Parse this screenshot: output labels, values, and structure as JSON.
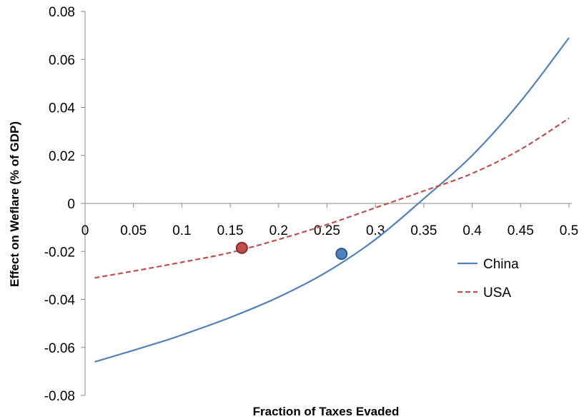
{
  "chart_data": {
    "type": "line",
    "title": "",
    "xlabel": "Fraction of Taxes Evaded",
    "ylabel": "Effect on Weflare (% of GDP)",
    "xlim": [
      0,
      0.5
    ],
    "ylim": [
      -0.08,
      0.08
    ],
    "x_ticks": [
      "0",
      "0.05",
      "0.1",
      "0.15",
      "0.2",
      "0.25",
      "0.3",
      "0.35",
      "0.4",
      "0.45",
      "0.5"
    ],
    "y_ticks": [
      "0.08",
      "0.06",
      "0.04",
      "0.02",
      "0",
      "-0.02",
      "-0.04",
      "-0.06",
      "-0.08"
    ],
    "grid": false,
    "legend_position": "right",
    "series": [
      {
        "name": "China",
        "color": "#4f81bd",
        "style": "solid",
        "x": [
          0.01,
          0.05,
          0.08,
          0.1,
          0.15,
          0.2,
          0.25,
          0.3,
          0.35,
          0.4,
          0.45,
          0.5
        ],
        "y": [
          -0.066,
          -0.0612,
          -0.0575,
          -0.0548,
          -0.0475,
          -0.039,
          -0.0285,
          -0.015,
          0.002,
          0.02,
          0.0425,
          0.069
        ],
        "marker": {
          "x": 0.265,
          "y": -0.021
        }
      },
      {
        "name": "USA",
        "color": "#c0504d",
        "style": "dashed",
        "x": [
          0.01,
          0.05,
          0.1,
          0.15,
          0.2,
          0.25,
          0.3,
          0.35,
          0.4,
          0.45,
          0.5
        ],
        "y": [
          -0.031,
          -0.0282,
          -0.0245,
          -0.0205,
          -0.015,
          -0.0088,
          -0.0018,
          0.0052,
          0.0125,
          0.0225,
          0.0355
        ],
        "marker": {
          "x": 0.162,
          "y": -0.0185
        }
      }
    ]
  }
}
